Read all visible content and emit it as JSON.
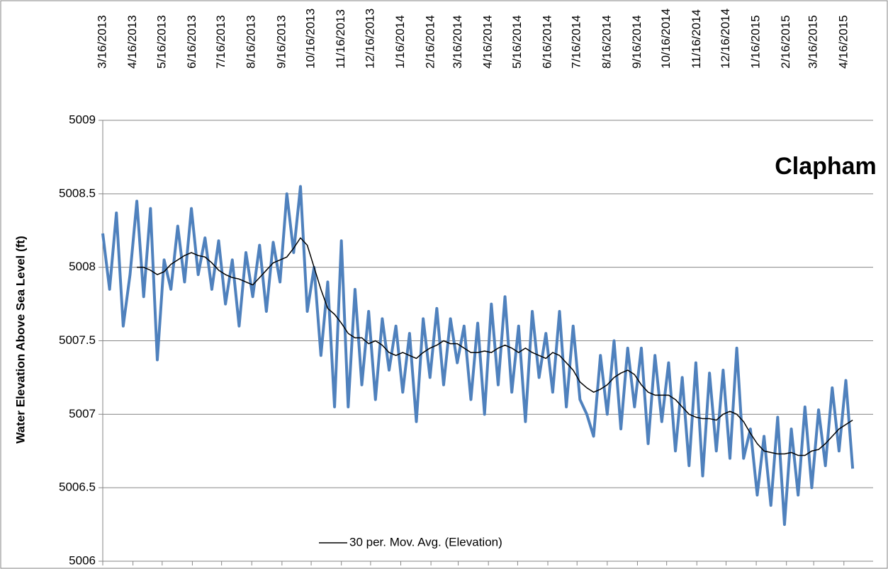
{
  "chart_data": {
    "type": "line",
    "annotation": "Clapham",
    "y_label": "Water Elevation Above Sea Level (ft)",
    "legend": "bottom",
    "grid": true,
    "ylim": [
      5006,
      5009
    ],
    "yticks": [
      5006,
      5006.5,
      5007,
      5007.5,
      5008,
      5008.5,
      5009
    ],
    "xlim": [
      "3/16/2013",
      "5/16/2015"
    ],
    "xticks": [
      "3/16/2013",
      "4/16/2013",
      "5/16/2013",
      "6/16/2013",
      "7/16/2013",
      "8/16/2013",
      "9/16/2013",
      "10/16/2013",
      "11/16/2013",
      "12/16/2013",
      "1/16/2014",
      "2/16/2014",
      "3/16/2014",
      "4/16/2014",
      "5/16/2014",
      "6/16/2014",
      "7/16/2014",
      "8/16/2014",
      "9/16/2014",
      "10/16/2014",
      "11/16/2014",
      "12/16/2014",
      "1/16/2015",
      "2/16/2015",
      "3/16/2015",
      "4/16/2015"
    ],
    "x": [
      "3/16/2013",
      "3/23/2013",
      "3/30/2013",
      "4/6/2013",
      "4/13/2013",
      "4/20/2013",
      "4/27/2013",
      "5/4/2013",
      "5/11/2013",
      "5/18/2013",
      "5/25/2013",
      "6/1/2013",
      "6/8/2013",
      "6/15/2013",
      "6/22/2013",
      "6/29/2013",
      "7/6/2013",
      "7/13/2013",
      "7/20/2013",
      "7/27/2013",
      "8/3/2013",
      "8/10/2013",
      "8/17/2013",
      "8/24/2013",
      "8/31/2013",
      "9/7/2013",
      "9/14/2013",
      "9/21/2013",
      "9/28/2013",
      "10/5/2013",
      "10/12/2013",
      "10/19/2013",
      "10/26/2013",
      "11/2/2013",
      "11/9/2013",
      "11/16/2013",
      "11/23/2013",
      "11/30/2013",
      "12/7/2013",
      "12/14/2013",
      "12/21/2013",
      "12/28/2013",
      "1/4/2014",
      "1/11/2014",
      "1/18/2014",
      "1/25/2014",
      "2/1/2014",
      "2/8/2014",
      "2/15/2014",
      "2/22/2014",
      "3/1/2014",
      "3/8/2014",
      "3/15/2014",
      "3/22/2014",
      "3/29/2014",
      "4/5/2014",
      "4/12/2014",
      "4/19/2014",
      "4/26/2014",
      "5/3/2014",
      "5/10/2014",
      "5/17/2014",
      "5/24/2014",
      "5/31/2014",
      "6/7/2014",
      "6/14/2014",
      "6/21/2014",
      "6/28/2014",
      "7/5/2014",
      "7/12/2014",
      "7/19/2014",
      "7/26/2014",
      "8/2/2014",
      "8/9/2014",
      "8/16/2014",
      "8/23/2014",
      "8/30/2014",
      "9/6/2014",
      "9/13/2014",
      "9/20/2014",
      "9/27/2014",
      "10/4/2014",
      "10/11/2014",
      "10/18/2014",
      "10/25/2014",
      "11/1/2014",
      "11/8/2014",
      "11/15/2014",
      "11/22/2014",
      "11/29/2014",
      "12/6/2014",
      "12/13/2014",
      "12/20/2014",
      "12/27/2014",
      "1/3/2015",
      "1/10/2015",
      "1/17/2015",
      "1/24/2015",
      "1/31/2015",
      "2/7/2015",
      "2/14/2015",
      "2/21/2015",
      "2/28/2015",
      "3/7/2015",
      "3/14/2015",
      "3/21/2015",
      "3/28/2015",
      "4/4/2015",
      "4/11/2015",
      "4/18/2015",
      "4/25/2015"
    ],
    "series": [
      {
        "color": "#4f81bd",
        "width": 4,
        "values": [
          5008.23,
          5007.85,
          5008.37,
          5007.6,
          5007.95,
          5008.45,
          5007.8,
          5008.4,
          5007.37,
          5008.05,
          5007.85,
          5008.28,
          5007.9,
          5008.4,
          5007.95,
          5008.2,
          5007.85,
          5008.18,
          5007.75,
          5008.05,
          5007.6,
          5008.1,
          5007.8,
          5008.15,
          5007.7,
          5008.17,
          5007.9,
          5008.5,
          5008.1,
          5008.55,
          5007.7,
          5008.0,
          5007.4,
          5007.9,
          5007.05,
          5008.18,
          5007.05,
          5007.85,
          5007.2,
          5007.7,
          5007.1,
          5007.65,
          5007.3,
          5007.6,
          5007.15,
          5007.55,
          5006.95,
          5007.65,
          5007.25,
          5007.72,
          5007.2,
          5007.65,
          5007.35,
          5007.6,
          5007.1,
          5007.62,
          5007.0,
          5007.75,
          5007.2,
          5007.8,
          5007.15,
          5007.6,
          5006.95,
          5007.7,
          5007.25,
          5007.55,
          5007.15,
          5007.7,
          5007.05,
          5007.6,
          5007.1,
          5007.0,
          5006.85,
          5007.4,
          5007.0,
          5007.5,
          5006.9,
          5007.45,
          5007.05,
          5007.45,
          5006.8,
          5007.4,
          5006.95,
          5007.35,
          5006.75,
          5007.25,
          5006.65,
          5007.35,
          5006.58,
          5007.28,
          5006.75,
          5007.3,
          5006.7,
          5007.45,
          5006.7,
          5006.9,
          5006.45,
          5006.85,
          5006.38,
          5006.98,
          5006.25,
          5006.9,
          5006.45,
          5007.05,
          5006.5,
          5007.03,
          5006.65,
          5007.18,
          5006.75,
          5007.23,
          5006.63
        ]
      },
      {
        "name": "30 per. Mov. Avg. (Elevation)",
        "color": "#000000",
        "width": 1.5,
        "values": [
          null,
          null,
          null,
          null,
          null,
          5008.0,
          5008.0,
          5007.98,
          5007.95,
          5007.97,
          5008.02,
          5008.05,
          5008.08,
          5008.1,
          5008.08,
          5008.07,
          5008.03,
          5007.98,
          5007.95,
          5007.93,
          5007.92,
          5007.9,
          5007.88,
          5007.93,
          5007.98,
          5008.03,
          5008.05,
          5008.07,
          5008.13,
          5008.2,
          5008.15,
          5008.0,
          5007.85,
          5007.72,
          5007.68,
          5007.62,
          5007.55,
          5007.52,
          5007.52,
          5007.48,
          5007.5,
          5007.47,
          5007.42,
          5007.4,
          5007.42,
          5007.4,
          5007.38,
          5007.42,
          5007.45,
          5007.47,
          5007.5,
          5007.48,
          5007.48,
          5007.45,
          5007.42,
          5007.42,
          5007.43,
          5007.42,
          5007.45,
          5007.47,
          5007.45,
          5007.42,
          5007.45,
          5007.42,
          5007.4,
          5007.38,
          5007.42,
          5007.4,
          5007.35,
          5007.3,
          5007.22,
          5007.18,
          5007.15,
          5007.17,
          5007.2,
          5007.25,
          5007.28,
          5007.3,
          5007.27,
          5007.2,
          5007.15,
          5007.13,
          5007.13,
          5007.13,
          5007.1,
          5007.05,
          5007.0,
          5006.98,
          5006.97,
          5006.97,
          5006.96,
          5007.0,
          5007.02,
          5007.0,
          5006.95,
          5006.87,
          5006.8,
          5006.75,
          5006.74,
          5006.73,
          5006.73,
          5006.74,
          5006.72,
          5006.72,
          5006.75,
          5006.76,
          5006.8,
          5006.85,
          5006.9,
          5006.93,
          5006.96
        ]
      }
    ]
  }
}
